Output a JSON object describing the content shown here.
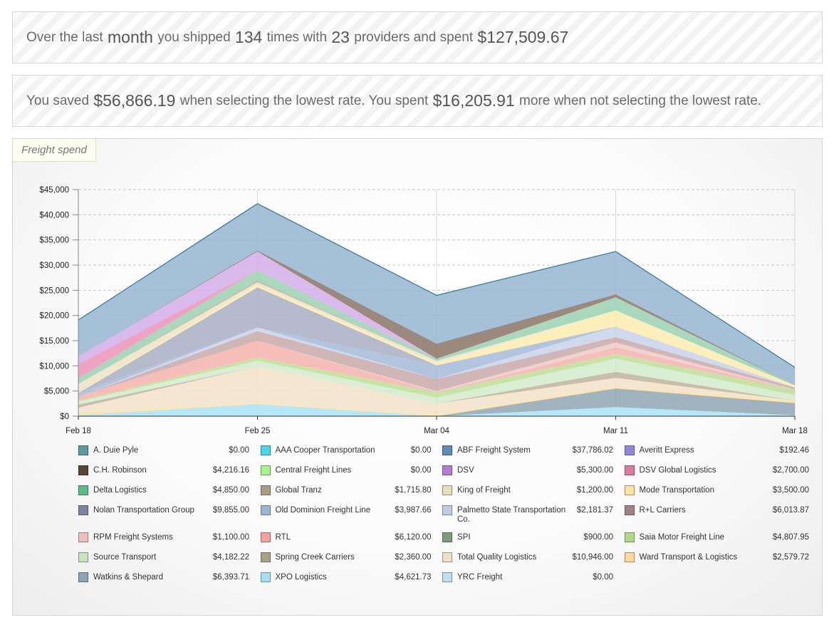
{
  "summary": {
    "p1": "Over the last ",
    "period": "month",
    "p2": " you shipped ",
    "shipments": "134",
    "p3": " times with ",
    "providers": "23",
    "p4": " providers and spent ",
    "spent": "$127,509.67"
  },
  "savings": {
    "p1": "You saved ",
    "saved": "$56,866.19",
    "p2": " when selecting the lowest rate. You spent ",
    "extra": "$16,205.91",
    "p3": " more when not selecting the lowest rate."
  },
  "panel": {
    "label": "Freight spend"
  },
  "chart_data": {
    "type": "area",
    "stacked": true,
    "x": [
      "Feb 18",
      "Feb 25",
      "Mar 04",
      "Mar 11",
      "Mar 18"
    ],
    "ylim": [
      0,
      45000
    ],
    "yticks": [
      0,
      5000,
      10000,
      15000,
      20000,
      25000,
      30000,
      35000,
      40000,
      45000
    ],
    "ytick_labels": [
      "$0",
      "$5,000",
      "$10,000",
      "$15,000",
      "$20,000",
      "$25,000",
      "$30,000",
      "$35,000",
      "$40,000",
      "$45,000"
    ],
    "grid": true,
    "series": [
      {
        "name": "XPO Logistics",
        "color": "#a9e3f5",
        "values": [
          200,
          2400,
          0,
          1800,
          200
        ]
      },
      {
        "name": "Watkins & Shepard",
        "color": "#8fa6b4",
        "values": [
          0,
          0,
          0,
          3700,
          2400
        ]
      },
      {
        "name": "Ward Transport & Logistics",
        "color": "#fde0a0",
        "values": [
          500,
          100,
          300,
          300,
          500
        ]
      },
      {
        "name": "Total Quality Logistics",
        "color": "#f2e2c8",
        "values": [
          1000,
          7400,
          2200,
          1800,
          0
        ]
      },
      {
        "name": "Spring Creek Carriers",
        "color": "#bfb39a",
        "values": [
          600,
          0,
          0,
          1200,
          0
        ]
      },
      {
        "name": "Source Transport",
        "color": "#d3ebcc",
        "values": [
          600,
          1100,
          1200,
          2600,
          1100
        ]
      },
      {
        "name": "Saia Motor Freight Line",
        "color": "#bedd98",
        "values": [
          200,
          700,
          1100,
          1000,
          1100
        ]
      },
      {
        "name": "RTL",
        "color": "#f5b3ad",
        "values": [
          800,
          3300,
          0,
          1300,
          0
        ]
      },
      {
        "name": "RPM Freight Systems",
        "color": "#f0cac6",
        "values": [
          0,
          0,
          200,
          900,
          0
        ]
      },
      {
        "name": "R+L Carriers",
        "color": "#c9a9aa",
        "values": [
          0,
          1900,
          2400,
          1100,
          400
        ]
      },
      {
        "name": "Palmetto State Transportation Co.",
        "color": "#c9d2ea",
        "values": [
          0,
          700,
          0,
          2100,
          0
        ]
      },
      {
        "name": "Old Dominion Freight Line",
        "color": "#a6bad8",
        "values": [
          700,
          0,
          2700,
          0,
          0
        ]
      },
      {
        "name": "Nolan Transportation Group",
        "color": "#a9aec4",
        "values": [
          0,
          8000,
          0,
          0,
          0
        ]
      },
      {
        "name": "Mode Transportation",
        "color": "#fdecb0",
        "values": [
          0,
          500,
          400,
          3200,
          400
        ]
      },
      {
        "name": "King of Freight",
        "color": "#efe3c7",
        "values": [
          1800,
          500,
          500,
          0,
          0
        ]
      },
      {
        "name": "Global Tranz",
        "color": "#bcb29a",
        "values": [
          0,
          400,
          0,
          0,
          0
        ]
      },
      {
        "name": "Delta Logistics",
        "color": "#9bd1b0",
        "values": [
          1200,
          2000,
          400,
          2600,
          100
        ]
      },
      {
        "name": "DSV Global Logistics",
        "color": "#eb93b7",
        "values": [
          2700,
          0,
          0,
          0,
          0
        ]
      },
      {
        "name": "DSV",
        "color": "#d4adea",
        "values": [
          1600,
          3700,
          0,
          0,
          0
        ]
      },
      {
        "name": "C.H. Robinson",
        "color": "#8a7466",
        "values": [
          0,
          200,
          3000,
          600,
          0
        ]
      },
      {
        "name": "ABF Freight System",
        "color": "#96b5d0",
        "values": [
          7200,
          9300,
          9600,
          8500,
          3500
        ]
      }
    ]
  },
  "legend": [
    {
      "name": "A. Duie Pyle",
      "value": "$0.00",
      "color": "#5f9a9c"
    },
    {
      "name": "AAA Cooper Transportation",
      "value": "$0.00",
      "color": "#48d5ee"
    },
    {
      "name": "ABF Freight System",
      "value": "$37,786.02",
      "color": "#5f8db8"
    },
    {
      "name": "Averitt Express",
      "value": "$192.46",
      "color": "#8f86e0"
    },
    {
      "name": "C.H. Robinson",
      "value": "$4,216.16",
      "color": "#5a4437"
    },
    {
      "name": "Central Freight Lines",
      "value": "$0.00",
      "color": "#a5f48e"
    },
    {
      "name": "DSV",
      "value": "$5,300.00",
      "color": "#b67ad8"
    },
    {
      "name": "DSV Global Logistics",
      "value": "$2,700.00",
      "color": "#e3789e"
    },
    {
      "name": "Delta Logistics",
      "value": "$4,850.00",
      "color": "#5dbb85"
    },
    {
      "name": "Global Tranz",
      "value": "$1,715.80",
      "color": "#a99e84"
    },
    {
      "name": "King of Freight",
      "value": "$1,200.00",
      "color": "#e9ddc0"
    },
    {
      "name": "Mode Transportation",
      "value": "$3,500.00",
      "color": "#fde39c"
    },
    {
      "name": "Nolan Transportation Group",
      "value": "$9,855.00",
      "color": "#7e849d"
    },
    {
      "name": "Old Dominion Freight Line",
      "value": "$3,987.66",
      "color": "#9db3d7"
    },
    {
      "name": "Palmetto State Transportation Co.",
      "value": "$2,181.37",
      "color": "#c2cbe4"
    },
    {
      "name": "R+L Carriers",
      "value": "$6,013.87",
      "color": "#a08383"
    },
    {
      "name": "RPM Freight Systems",
      "value": "$1,100.00",
      "color": "#eec0bc"
    },
    {
      "name": "RTL",
      "value": "$6,120.00",
      "color": "#f3a39c"
    },
    {
      "name": "SPI",
      "value": "$900.00",
      "color": "#7d9f7c"
    },
    {
      "name": "Saia Motor Freight Line",
      "value": "$4,807.95",
      "color": "#b4d98b"
    },
    {
      "name": "Source Transport",
      "value": "$4,182.22",
      "color": "#c5e4bf"
    },
    {
      "name": "Spring Creek Carriers",
      "value": "$2,360.00",
      "color": "#aaa087"
    },
    {
      "name": "Total Quality Logistics",
      "value": "$10,946.00",
      "color": "#f1e0c8"
    },
    {
      "name": "Ward Transport & Logistics",
      "value": "$2,579.72",
      "color": "#fcd996"
    },
    {
      "name": "Watkins & Shepard",
      "value": "$6,393.71",
      "color": "#8ea4b3"
    },
    {
      "name": "XPO Logistics",
      "value": "$4,621.73",
      "color": "#a3e0f4"
    },
    {
      "name": "YRC Freight",
      "value": "$0.00",
      "color": "#bfe1ee"
    }
  ]
}
